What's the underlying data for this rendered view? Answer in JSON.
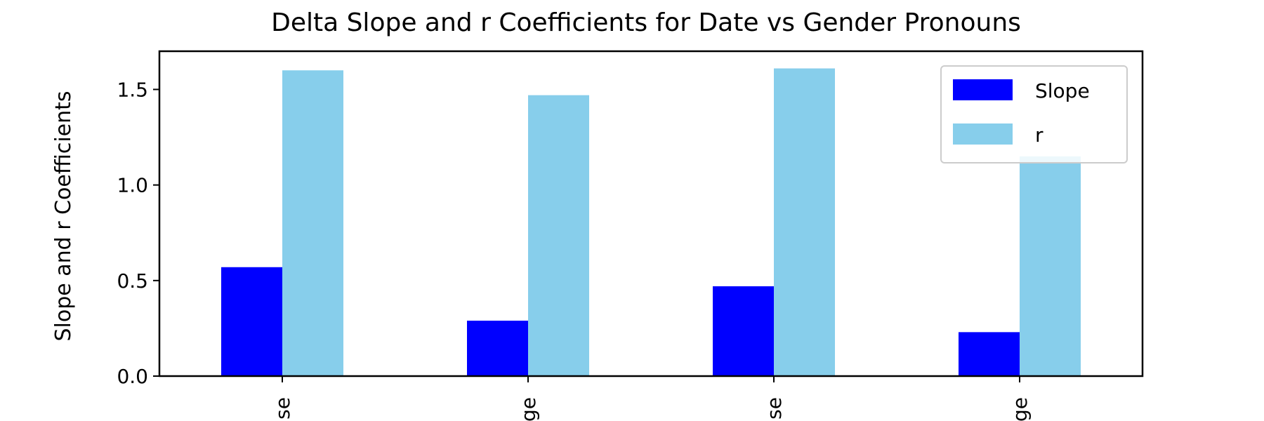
{
  "chart_data": {
    "type": "bar",
    "title": "Delta Slope and r Coefficients for Date vs Gender Pronouns",
    "xlabel": "",
    "ylabel": "Slope and r Coefficients",
    "categories": [
      "se",
      "ge",
      "se",
      "ge"
    ],
    "series": [
      {
        "name": "Slope",
        "color": "#0000ff",
        "values": [
          0.57,
          0.29,
          0.47,
          0.23
        ]
      },
      {
        "name": "r",
        "color": "#87ceeb",
        "values": [
          1.6,
          1.47,
          1.61,
          1.15
        ]
      }
    ],
    "ylim": [
      0,
      1.7
    ],
    "yticks": [
      0.0,
      0.5,
      1.0,
      1.5
    ],
    "ytick_labels": [
      "0.0",
      "0.5",
      "1.0",
      "1.5"
    ],
    "grid": false,
    "legend_position": "upper right"
  }
}
